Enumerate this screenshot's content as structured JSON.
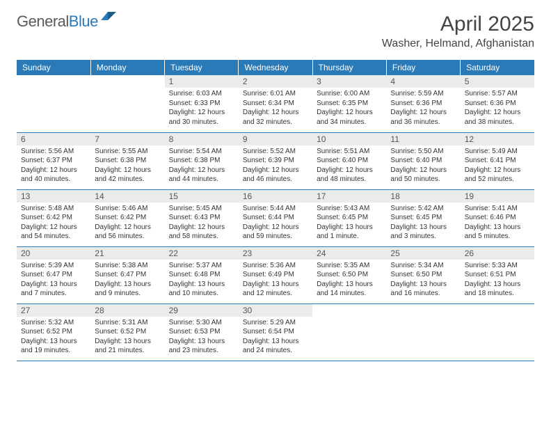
{
  "brand": {
    "part1": "General",
    "part2": "Blue"
  },
  "title": "April 2025",
  "location": "Washer, Helmand, Afghanistan",
  "colors": {
    "header_bg": "#2a7ab8",
    "header_text": "#ffffff",
    "daynum_bg": "#e9eceb",
    "week_border": "#2a7ab8",
    "body_text": "#333333",
    "background": "#ffffff"
  },
  "typography": {
    "month_title_fontsize": 30,
    "location_fontsize": 16,
    "weekday_fontsize": 12,
    "daynum_fontsize": 12,
    "body_fontsize": 10
  },
  "weekdays": [
    "Sunday",
    "Monday",
    "Tuesday",
    "Wednesday",
    "Thursday",
    "Friday",
    "Saturday"
  ],
  "weeks": [
    [
      null,
      null,
      {
        "n": "1",
        "sr": "Sunrise: 6:03 AM",
        "ss": "Sunset: 6:33 PM",
        "dl": "Daylight: 12 hours and 30 minutes."
      },
      {
        "n": "2",
        "sr": "Sunrise: 6:01 AM",
        "ss": "Sunset: 6:34 PM",
        "dl": "Daylight: 12 hours and 32 minutes."
      },
      {
        "n": "3",
        "sr": "Sunrise: 6:00 AM",
        "ss": "Sunset: 6:35 PM",
        "dl": "Daylight: 12 hours and 34 minutes."
      },
      {
        "n": "4",
        "sr": "Sunrise: 5:59 AM",
        "ss": "Sunset: 6:36 PM",
        "dl": "Daylight: 12 hours and 36 minutes."
      },
      {
        "n": "5",
        "sr": "Sunrise: 5:57 AM",
        "ss": "Sunset: 6:36 PM",
        "dl": "Daylight: 12 hours and 38 minutes."
      }
    ],
    [
      {
        "n": "6",
        "sr": "Sunrise: 5:56 AM",
        "ss": "Sunset: 6:37 PM",
        "dl": "Daylight: 12 hours and 40 minutes."
      },
      {
        "n": "7",
        "sr": "Sunrise: 5:55 AM",
        "ss": "Sunset: 6:38 PM",
        "dl": "Daylight: 12 hours and 42 minutes."
      },
      {
        "n": "8",
        "sr": "Sunrise: 5:54 AM",
        "ss": "Sunset: 6:38 PM",
        "dl": "Daylight: 12 hours and 44 minutes."
      },
      {
        "n": "9",
        "sr": "Sunrise: 5:52 AM",
        "ss": "Sunset: 6:39 PM",
        "dl": "Daylight: 12 hours and 46 minutes."
      },
      {
        "n": "10",
        "sr": "Sunrise: 5:51 AM",
        "ss": "Sunset: 6:40 PM",
        "dl": "Daylight: 12 hours and 48 minutes."
      },
      {
        "n": "11",
        "sr": "Sunrise: 5:50 AM",
        "ss": "Sunset: 6:40 PM",
        "dl": "Daylight: 12 hours and 50 minutes."
      },
      {
        "n": "12",
        "sr": "Sunrise: 5:49 AM",
        "ss": "Sunset: 6:41 PM",
        "dl": "Daylight: 12 hours and 52 minutes."
      }
    ],
    [
      {
        "n": "13",
        "sr": "Sunrise: 5:48 AM",
        "ss": "Sunset: 6:42 PM",
        "dl": "Daylight: 12 hours and 54 minutes."
      },
      {
        "n": "14",
        "sr": "Sunrise: 5:46 AM",
        "ss": "Sunset: 6:42 PM",
        "dl": "Daylight: 12 hours and 56 minutes."
      },
      {
        "n": "15",
        "sr": "Sunrise: 5:45 AM",
        "ss": "Sunset: 6:43 PM",
        "dl": "Daylight: 12 hours and 58 minutes."
      },
      {
        "n": "16",
        "sr": "Sunrise: 5:44 AM",
        "ss": "Sunset: 6:44 PM",
        "dl": "Daylight: 12 hours and 59 minutes."
      },
      {
        "n": "17",
        "sr": "Sunrise: 5:43 AM",
        "ss": "Sunset: 6:45 PM",
        "dl": "Daylight: 13 hours and 1 minute."
      },
      {
        "n": "18",
        "sr": "Sunrise: 5:42 AM",
        "ss": "Sunset: 6:45 PM",
        "dl": "Daylight: 13 hours and 3 minutes."
      },
      {
        "n": "19",
        "sr": "Sunrise: 5:41 AM",
        "ss": "Sunset: 6:46 PM",
        "dl": "Daylight: 13 hours and 5 minutes."
      }
    ],
    [
      {
        "n": "20",
        "sr": "Sunrise: 5:39 AM",
        "ss": "Sunset: 6:47 PM",
        "dl": "Daylight: 13 hours and 7 minutes."
      },
      {
        "n": "21",
        "sr": "Sunrise: 5:38 AM",
        "ss": "Sunset: 6:47 PM",
        "dl": "Daylight: 13 hours and 9 minutes."
      },
      {
        "n": "22",
        "sr": "Sunrise: 5:37 AM",
        "ss": "Sunset: 6:48 PM",
        "dl": "Daylight: 13 hours and 10 minutes."
      },
      {
        "n": "23",
        "sr": "Sunrise: 5:36 AM",
        "ss": "Sunset: 6:49 PM",
        "dl": "Daylight: 13 hours and 12 minutes."
      },
      {
        "n": "24",
        "sr": "Sunrise: 5:35 AM",
        "ss": "Sunset: 6:50 PM",
        "dl": "Daylight: 13 hours and 14 minutes."
      },
      {
        "n": "25",
        "sr": "Sunrise: 5:34 AM",
        "ss": "Sunset: 6:50 PM",
        "dl": "Daylight: 13 hours and 16 minutes."
      },
      {
        "n": "26",
        "sr": "Sunrise: 5:33 AM",
        "ss": "Sunset: 6:51 PM",
        "dl": "Daylight: 13 hours and 18 minutes."
      }
    ],
    [
      {
        "n": "27",
        "sr": "Sunrise: 5:32 AM",
        "ss": "Sunset: 6:52 PM",
        "dl": "Daylight: 13 hours and 19 minutes."
      },
      {
        "n": "28",
        "sr": "Sunrise: 5:31 AM",
        "ss": "Sunset: 6:52 PM",
        "dl": "Daylight: 13 hours and 21 minutes."
      },
      {
        "n": "29",
        "sr": "Sunrise: 5:30 AM",
        "ss": "Sunset: 6:53 PM",
        "dl": "Daylight: 13 hours and 23 minutes."
      },
      {
        "n": "30",
        "sr": "Sunrise: 5:29 AM",
        "ss": "Sunset: 6:54 PM",
        "dl": "Daylight: 13 hours and 24 minutes."
      },
      null,
      null,
      null
    ]
  ]
}
